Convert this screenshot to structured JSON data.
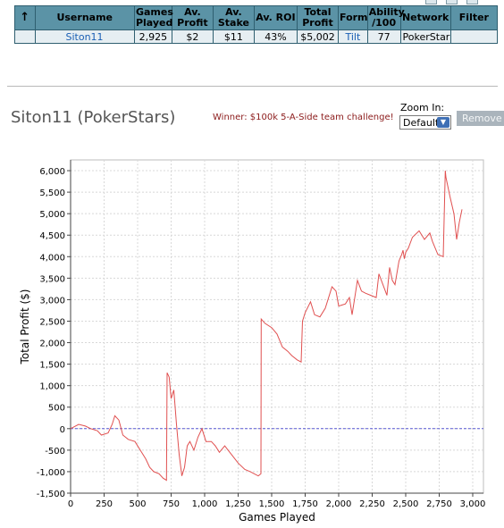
{
  "table": {
    "headers": [
      "↑",
      "Username",
      "Games Played",
      "Av. Profit",
      "Av. Stake",
      "Av. ROI",
      "Total Profit",
      "Form",
      "Ability /100",
      "Network",
      "Filter"
    ],
    "row": {
      "username": "Siton11",
      "games_played": "2,925",
      "av_profit": "$2",
      "av_stake": "$11",
      "av_roi": "43%",
      "total_profit": "$5,002",
      "form": "Tilt",
      "ability": "77",
      "network": "PokerStars",
      "filter": ""
    }
  },
  "player_title": "Siton11 (PokerStars)",
  "winner_text": "Winner: $100k 5-A-Side team challenge!",
  "zoom": {
    "label": "Zoom In:",
    "selected": "Default"
  },
  "remove_label": "Remove",
  "colors": {
    "header_bg": "#5b93a6",
    "row_bg": "#e6eef2",
    "line": "#e05050",
    "zero_line": "#5b5bd6"
  },
  "chart_data": {
    "type": "line",
    "xlabel": "Games Played",
    "ylabel": "Total Profit ($)",
    "xlim": [
      0,
      3080
    ],
    "ylim": [
      -1500,
      6250
    ],
    "xticks": [
      0,
      250,
      500,
      750,
      1000,
      1250,
      1500,
      1750,
      2000,
      2250,
      2500,
      2750,
      3000
    ],
    "xtick_labels": [
      "0",
      "250",
      "500",
      "750",
      "1,000",
      "1,250",
      "1,500",
      "1,750",
      "2,000",
      "2,250",
      "2,500",
      "2,750",
      "3,000"
    ],
    "yticks": [
      -1500,
      -1000,
      -500,
      0,
      500,
      1000,
      1500,
      2000,
      2500,
      3000,
      3500,
      4000,
      4500,
      5000,
      5500,
      6000
    ],
    "ytick_labels": [
      "-1,500",
      "-1,000",
      "-500",
      "0",
      "500",
      "1,000",
      "1,500",
      "2,000",
      "2,500",
      "3,000",
      "3,500",
      "4,000",
      "4,500",
      "5,000",
      "5,500",
      "6,000"
    ],
    "grid": true,
    "x": [
      0,
      60,
      110,
      150,
      200,
      230,
      280,
      310,
      330,
      360,
      390,
      430,
      480,
      520,
      560,
      590,
      620,
      660,
      690,
      715,
      720,
      735,
      750,
      770,
      790,
      810,
      830,
      850,
      870,
      890,
      920,
      950,
      980,
      1010,
      1050,
      1080,
      1110,
      1150,
      1200,
      1250,
      1300,
      1340,
      1400,
      1420,
      1422,
      1450,
      1500,
      1540,
      1580,
      1620,
      1650,
      1690,
      1720,
      1730,
      1750,
      1790,
      1820,
      1860,
      1900,
      1950,
      1980,
      2000,
      2050,
      2080,
      2100,
      2140,
      2170,
      2200,
      2240,
      2280,
      2300,
      2330,
      2360,
      2380,
      2400,
      2420,
      2450,
      2470,
      2480,
      2490,
      2500,
      2520,
      2550,
      2600,
      2640,
      2680,
      2700,
      2740,
      2780,
      2795,
      2800,
      2830,
      2860,
      2880,
      2900,
      2920
    ],
    "y": [
      0,
      100,
      60,
      0,
      -50,
      -150,
      -100,
      100,
      300,
      200,
      -150,
      -250,
      -300,
      -500,
      -700,
      -900,
      -1000,
      -1050,
      -1150,
      -1200,
      1300,
      1200,
      700,
      900,
      100,
      -600,
      -1100,
      -900,
      -400,
      -300,
      -500,
      -200,
      0,
      -300,
      -300,
      -400,
      -550,
      -400,
      -600,
      -800,
      -950,
      -1000,
      -1100,
      -1050,
      2550,
      2450,
      2350,
      2200,
      1900,
      1800,
      1700,
      1600,
      1550,
      2500,
      2700,
      2950,
      2650,
      2600,
      2800,
      3300,
      3200,
      2850,
      2900,
      3050,
      2650,
      3450,
      3200,
      3150,
      3100,
      3050,
      3600,
      3350,
      3100,
      3750,
      3450,
      3350,
      3900,
      4050,
      4150,
      3950,
      4100,
      4200,
      4450,
      4600,
      4400,
      4550,
      4350,
      4050,
      4000,
      6000,
      5850,
      5400,
      5000,
      4400,
      4800,
      5100
    ]
  }
}
